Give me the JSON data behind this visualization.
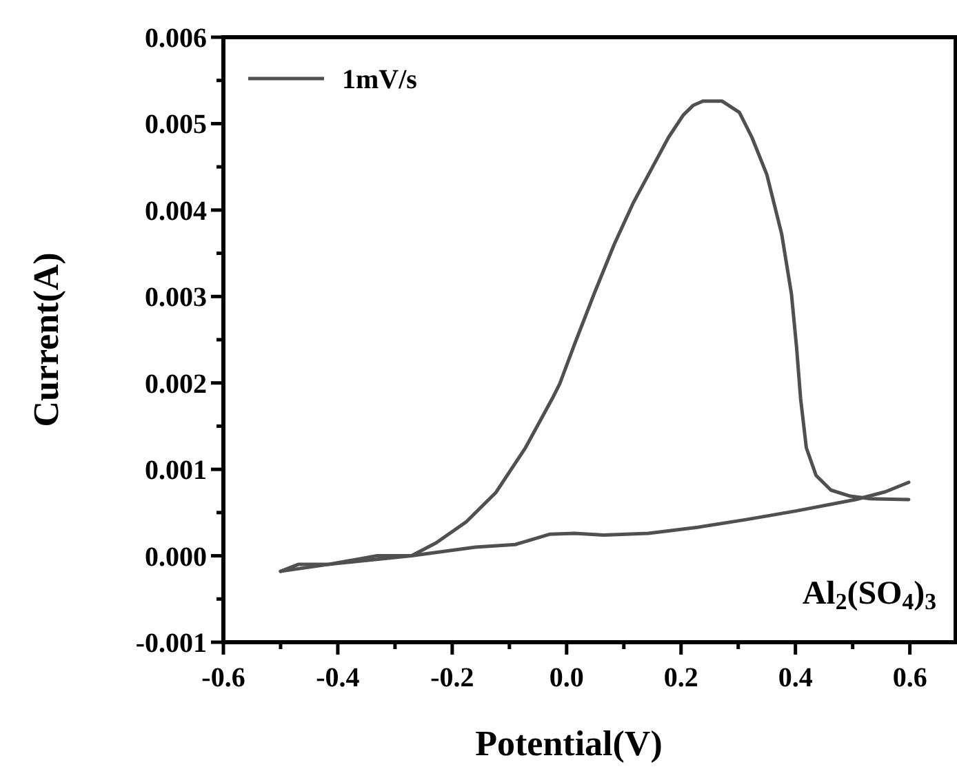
{
  "chart_data": {
    "type": "line",
    "xlabel": "Potential(V)",
    "ylabel": "Current(A)",
    "annotations": [
      "Al$_{2}$(SO$_{4}$)$_{3}$"
    ],
    "legend": "top left",
    "marker": "none",
    "line_style": "solid",
    "grid": false,
    "xlim": [
      -0.6,
      0.68
    ],
    "ylim": [
      -0.001,
      0.006
    ],
    "xticks": [
      -0.6,
      {
        "value": -0.5,
        "label": null
      },
      -0.4,
      {
        "value": -0.3,
        "label": null
      },
      -0.2,
      {
        "value": -0.1,
        "label": null
      },
      {
        "value": 0,
        "label": "0.0"
      },
      {
        "value": 0.1,
        "label": null
      },
      0.2,
      {
        "value": 0.3,
        "label": null
      },
      0.4,
      {
        "value": 0.5,
        "label": null
      },
      0.6
    ],
    "yticks": [
      -0.001,
      {
        "value": -0.0005,
        "label": null
      },
      {
        "value": 0,
        "label": "0.000"
      },
      {
        "value": 0.0005,
        "label": null
      },
      0.001,
      {
        "value": 0.0015,
        "label": null
      },
      0.002,
      {
        "value": 0.0025,
        "label": null
      },
      0.003,
      {
        "value": 0.0035,
        "label": null
      },
      0.004,
      {
        "value": 0.0045,
        "label": null
      },
      0.005,
      {
        "value": 0.0055,
        "label": null
      },
      0.006
    ],
    "series": [
      {
        "name": "1mV/s",
        "color": "#505050",
        "x": [
          -0.5,
          -0.417,
          -0.271,
          -0.159,
          -0.09,
          -0.029,
          0.014,
          0.065,
          0.143,
          0.229,
          0.315,
          0.402,
          0.505,
          0.557,
          0.598
        ],
        "values": [
          -0.00018,
          -0.0001,
          0.0,
          0.0001,
          0.00013,
          0.00025,
          0.00026,
          0.00024,
          0.00026,
          0.00033,
          0.00042,
          0.00052,
          0.00065,
          0.00074,
          0.00085
        ]
      },
      {
        "color": "#505050",
        "x": [
          0.598,
          0.531,
          0.496,
          0.462,
          0.436,
          0.419,
          0.409,
          0.402,
          0.393,
          0.376,
          0.35,
          0.324,
          0.302,
          0.272,
          0.238,
          0.221,
          0.204,
          0.178,
          0.152,
          0.117,
          0.083,
          0.048,
          0.014,
          -0.012,
          -0.025,
          -0.072,
          -0.124,
          -0.176,
          -0.228,
          -0.271,
          -0.331,
          -0.417,
          -0.469,
          -0.5
        ],
        "values": [
          0.00065,
          0.00066,
          0.00069,
          0.00076,
          0.00093,
          0.00125,
          0.00182,
          0.00241,
          0.00303,
          0.00372,
          0.00441,
          0.00484,
          0.00513,
          0.00526,
          0.00526,
          0.00521,
          0.0051,
          0.00484,
          0.00452,
          0.00409,
          0.0036,
          0.00303,
          0.00245,
          0.00199,
          0.00182,
          0.00125,
          0.00073,
          0.00039,
          0.00015,
          0.0,
          0.0,
          -0.0001,
          -0.0001,
          -0.00018
        ]
      }
    ]
  }
}
